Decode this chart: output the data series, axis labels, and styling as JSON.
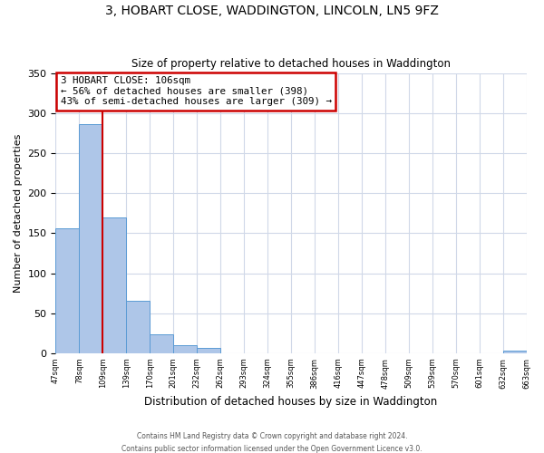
{
  "title": "3, HOBART CLOSE, WADDINGTON, LINCOLN, LN5 9FZ",
  "subtitle": "Size of property relative to detached houses in Waddington",
  "xlabel": "Distribution of detached houses by size in Waddington",
  "ylabel": "Number of detached properties",
  "bin_labels": [
    "47sqm",
    "78sqm",
    "109sqm",
    "139sqm",
    "170sqm",
    "201sqm",
    "232sqm",
    "262sqm",
    "293sqm",
    "324sqm",
    "355sqm",
    "386sqm",
    "416sqm",
    "447sqm",
    "478sqm",
    "509sqm",
    "539sqm",
    "570sqm",
    "601sqm",
    "632sqm",
    "663sqm"
  ],
  "bar_heights": [
    156,
    286,
    170,
    65,
    24,
    10,
    7,
    0,
    0,
    0,
    0,
    0,
    0,
    0,
    0,
    0,
    0,
    0,
    0,
    3,
    0
  ],
  "bar_color": "#aec6e8",
  "bar_edge_color": "#5b9bd5",
  "vline_x": 2,
  "vline_color": "#cc0000",
  "annotation_title": "3 HOBART CLOSE: 106sqm",
  "annotation_line1": "← 56% of detached houses are smaller (398)",
  "annotation_line2": "43% of semi-detached houses are larger (309) →",
  "annotation_box_color": "#cc0000",
  "ylim": [
    0,
    350
  ],
  "yticks": [
    0,
    50,
    100,
    150,
    200,
    250,
    300,
    350
  ],
  "footer1": "Contains HM Land Registry data © Crown copyright and database right 2024.",
  "footer2": "Contains public sector information licensed under the Open Government Licence v3.0.",
  "bg_color": "#ffffff",
  "grid_color": "#d0d8e8"
}
